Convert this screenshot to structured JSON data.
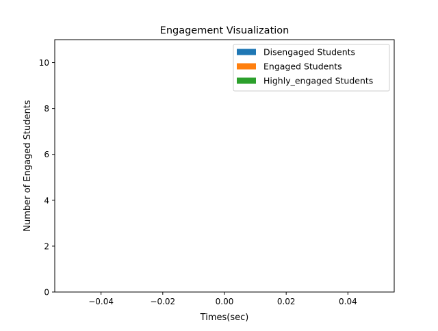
{
  "chart_data": {
    "type": "bar",
    "title": "Engagement Visualization",
    "xlabel": "Times(sec)",
    "ylabel": "Number of Engaged Students",
    "xlim": [
      -0.055,
      0.055
    ],
    "ylim": [
      0,
      11
    ],
    "xticks": [
      -0.04,
      -0.02,
      0.0,
      0.02,
      0.04
    ],
    "xtick_labels": [
      "−0.04",
      "−0.02",
      "0.00",
      "0.02",
      "0.04"
    ],
    "yticks": [
      0,
      2,
      4,
      6,
      8,
      10
    ],
    "ytick_labels": [
      "0",
      "2",
      "4",
      "6",
      "8",
      "10"
    ],
    "grid": false,
    "legend_position": "upper right",
    "x": [],
    "series": [
      {
        "name": "Disengaged Students",
        "color": "#1f77b4",
        "values": []
      },
      {
        "name": "Engaged Students",
        "color": "#ff7f0e",
        "values": []
      },
      {
        "name": "Highly_engaged Students",
        "color": "#2ca02c",
        "values": []
      }
    ]
  }
}
